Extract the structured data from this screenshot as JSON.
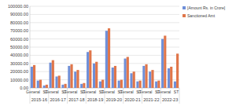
{
  "chart_data": {
    "type": "bar",
    "categories": [
      "General",
      null,
      "ST",
      "General",
      null,
      "ST",
      "General",
      null,
      "ST",
      "General",
      null,
      "ST",
      "General",
      null,
      "ST",
      "General",
      null,
      "ST",
      "General",
      null,
      "ST",
      "General",
      null,
      "ST"
    ],
    "groups": [
      "2015-16",
      "2016-17",
      "2017-18",
      "2018-19",
      "2019-20",
      "2020-21",
      "2021-22",
      "2022-23"
    ],
    "series": [
      {
        "name": "[Amount Rs. in Crore]",
        "color": "#6f8fd8",
        "values": [
          26000,
          9000,
          3000,
          31000,
          14000,
          4000,
          27000,
          20000,
          5000,
          44000,
          30000,
          8000,
          70000,
          25000,
          9000,
          36000,
          18000,
          8000,
          27000,
          20000,
          8000,
          60000,
          24000,
          8000
        ]
      },
      {
        "name": "Sanctioned Amt",
        "color": "#e0764a",
        "values": [
          28000,
          10000,
          4000,
          34000,
          15000,
          5000,
          29000,
          22000,
          6000,
          46000,
          32000,
          10000,
          73000,
          27000,
          10000,
          38000,
          20000,
          9000,
          29000,
          22000,
          9000,
          64000,
          26000,
          42000
        ]
      }
    ],
    "ylim": [
      0,
      100000
    ],
    "yticks": [
      {
        "value": 0,
        "label": "0.00"
      },
      {
        "value": 10000,
        "label": "10000.00"
      },
      {
        "value": 20000,
        "label": "20000.00"
      },
      {
        "value": 30000,
        "label": "30000.00"
      },
      {
        "value": 40000,
        "label": "40000.00"
      },
      {
        "value": 50000,
        "label": "50000.00"
      },
      {
        "value": 60000,
        "label": "60000.00"
      },
      {
        "value": 70000,
        "label": "70000.00"
      },
      {
        "value": 80000,
        "label": "80000.00"
      },
      {
        "value": 90000,
        "label": "90000.00"
      },
      {
        "value": 100000,
        "label": "100000.00"
      }
    ],
    "grid": true,
    "legend": "top-right"
  }
}
